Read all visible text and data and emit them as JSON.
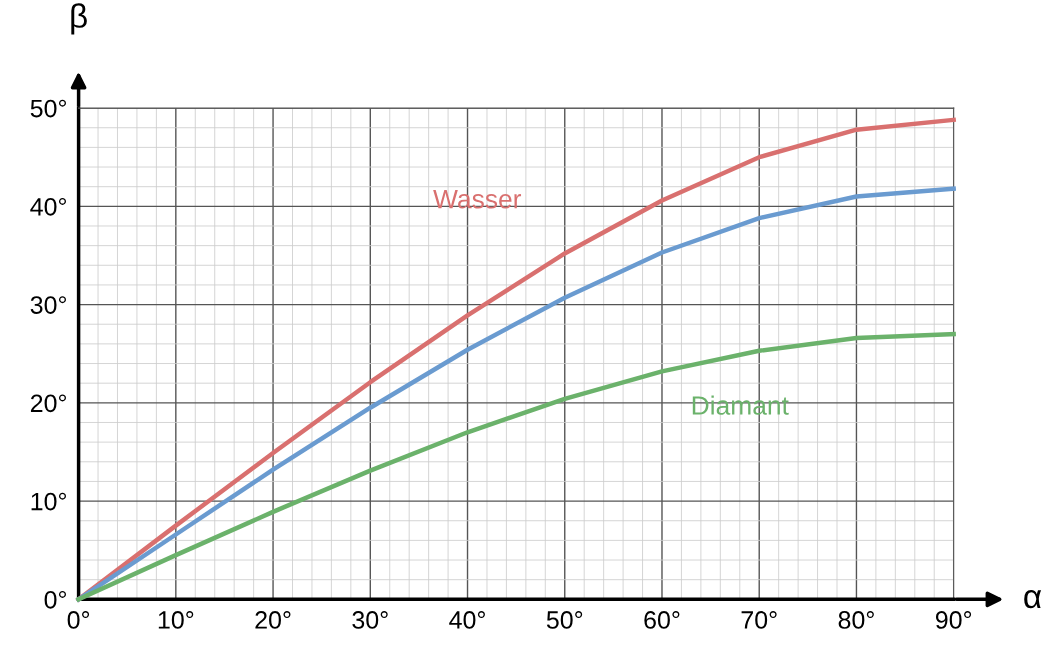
{
  "chart_data": {
    "type": "line",
    "xlabel": "α",
    "ylabel": "β",
    "x": [
      0,
      10,
      20,
      30,
      40,
      50,
      60,
      70,
      80,
      90
    ],
    "series": [
      {
        "name": "Wasser",
        "color": "#d9706f",
        "values": [
          0,
          7.5,
          14.9,
          22.1,
          28.9,
          35.2,
          40.6,
          45.0,
          47.8,
          48.8
        ]
      },
      {
        "color": "#6a9bd0",
        "values": [
          0,
          6.6,
          13.2,
          19.5,
          25.4,
          30.7,
          35.3,
          38.8,
          41.0,
          41.8
        ]
      },
      {
        "name": "Diamant",
        "color": "#6bb26b",
        "values": [
          0,
          4.5,
          8.9,
          13.1,
          17.0,
          20.4,
          23.2,
          25.3,
          26.6,
          27.0
        ]
      }
    ],
    "xlim": [
      0,
      90
    ],
    "ylim": [
      0,
      50
    ],
    "xticks": [
      {
        "value": 0,
        "label": "0°"
      },
      {
        "value": 10,
        "label": "10°"
      },
      {
        "value": 20,
        "label": "20°"
      },
      {
        "value": 30,
        "label": "30°"
      },
      {
        "value": 40,
        "label": "40°"
      },
      {
        "value": 50,
        "label": "50°"
      },
      {
        "value": 60,
        "label": "60°"
      },
      {
        "value": 70,
        "label": "70°"
      },
      {
        "value": 80,
        "label": "80°"
      },
      {
        "value": 90,
        "label": "90°"
      }
    ],
    "yticks": [
      {
        "value": 0,
        "label": "0°"
      },
      {
        "value": 10,
        "label": "10°"
      },
      {
        "value": 20,
        "label": "20°"
      },
      {
        "value": 30,
        "label": "30°"
      },
      {
        "value": 40,
        "label": "40°"
      },
      {
        "value": 50,
        "label": "50°"
      }
    ],
    "grid": true,
    "legend": false,
    "marker": "none",
    "line_style": "solid"
  }
}
